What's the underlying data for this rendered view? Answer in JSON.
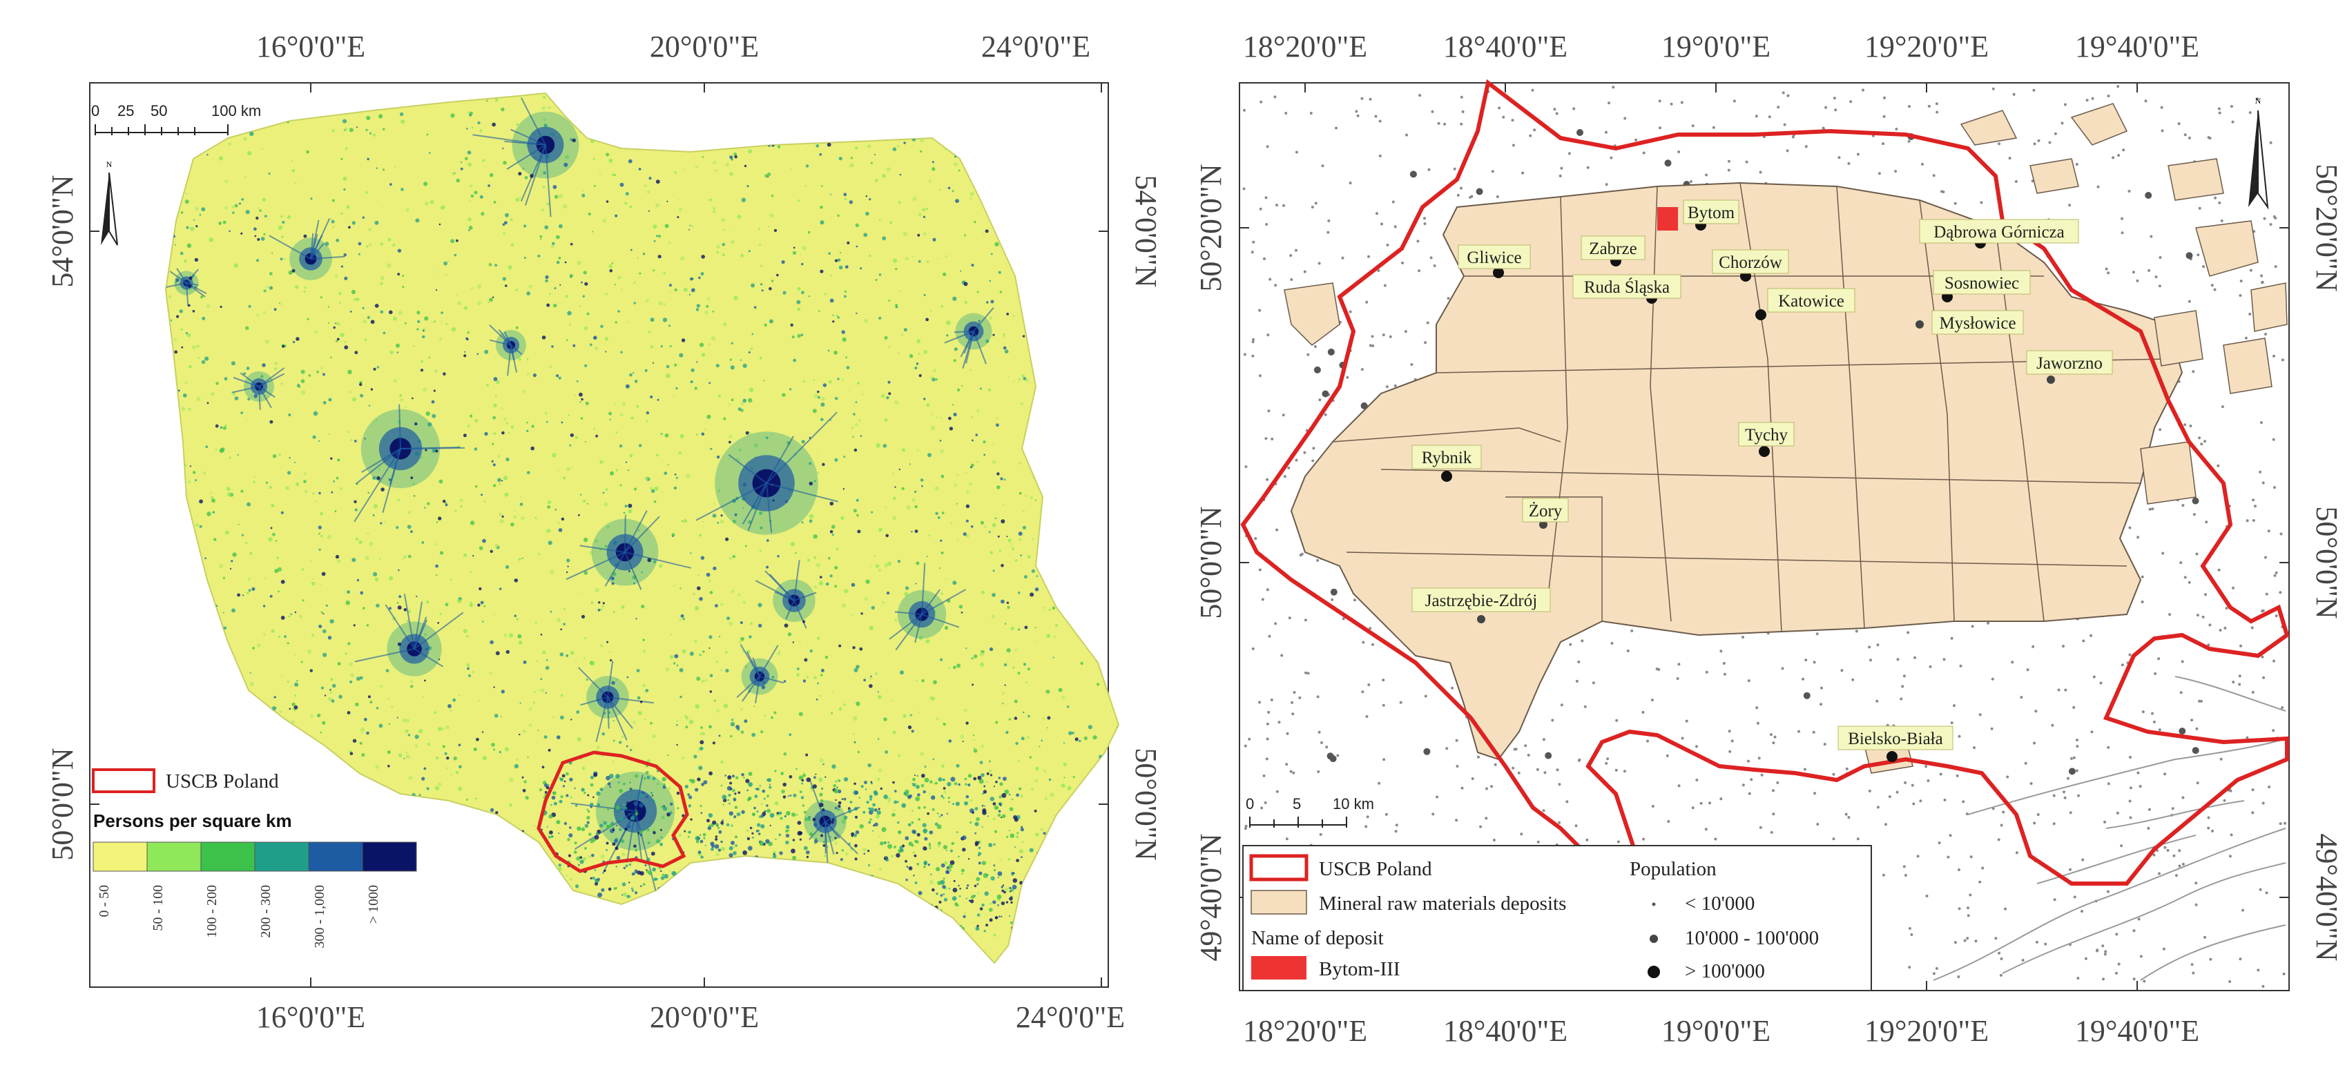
{
  "left_map": {
    "top_ticks": [
      "16°0'0\"E",
      "20°0'0\"E",
      "24°0'0\"E"
    ],
    "bottom_ticks": [
      "16°0'0\"E",
      "20°0'0\"E",
      "24°0'0\"E"
    ],
    "left_ticks": [
      "54°0'0\"N",
      "50°0'0\"N"
    ],
    "right_ticks": [
      "54°0'0\"N",
      "50°0'0\"N"
    ],
    "scale_labels": [
      "0",
      "25",
      "50",
      "100 km"
    ],
    "north_label": "N",
    "legend": {
      "boundary_label": "USCB Poland",
      "boundary_color": "#dd2222",
      "title": "Persons per square km",
      "classes": [
        {
          "label": "0 - 50",
          "color": "#f3f37a"
        },
        {
          "label": "50 - 100",
          "color": "#8ee85a"
        },
        {
          "label": "100 - 200",
          "color": "#3cc24a"
        },
        {
          "label": "200 - 300",
          "color": "#1f9f8a"
        },
        {
          "label": "300 - 1,000",
          "color": "#1d5ba3"
        },
        {
          "label": "> 1000",
          "color": "#0a1466"
        }
      ]
    }
  },
  "right_map": {
    "top_ticks": [
      "18°20'0\"E",
      "18°40'0\"E",
      "19°0'0\"E",
      "19°20'0\"E",
      "19°40'0\"E"
    ],
    "bottom_ticks": [
      "18°20'0\"E",
      "18°40'0\"E",
      "19°0'0\"E",
      "19°20'0\"E",
      "19°40'0\"E"
    ],
    "left_ticks": [
      "50°20'0\"N",
      "50°0'0\"N",
      "49°40'0\"N"
    ],
    "right_ticks": [
      "50°20'0\"N",
      "50°0'0\"N",
      "49°40'0\"N"
    ],
    "scale_labels": [
      "0",
      "5",
      "10 km"
    ],
    "north_label": "N",
    "cities": [
      {
        "name": "Bytom",
        "size": "large"
      },
      {
        "name": "Dąbrowa Górnicza",
        "size": "large"
      },
      {
        "name": "Zabrze",
        "size": "large"
      },
      {
        "name": "Gliwice",
        "size": "large"
      },
      {
        "name": "Chorzów",
        "size": "large"
      },
      {
        "name": "Ruda Śląska",
        "size": "large"
      },
      {
        "name": "Sosnowiec",
        "size": "large"
      },
      {
        "name": "Katowice",
        "size": "large"
      },
      {
        "name": "Mysłowice",
        "size": "medium"
      },
      {
        "name": "Jaworzno",
        "size": "medium"
      },
      {
        "name": "Tychy",
        "size": "large"
      },
      {
        "name": "Rybnik",
        "size": "large"
      },
      {
        "name": "Żory",
        "size": "medium"
      },
      {
        "name": "Jastrzębie-Zdrój",
        "size": "medium"
      },
      {
        "name": "Bielsko-Biała",
        "size": "large"
      }
    ],
    "legend": {
      "boundary_label": "USCB Poland",
      "deposits_label": "Mineral raw materials deposits",
      "deposit_name_heading": "Name of deposit",
      "deposit_name": "Bytom-III",
      "population_heading": "Population",
      "population_classes": [
        "< 10'000",
        "10'000 - 100'000",
        "> 100'000"
      ],
      "boundary_color": "#dd2222",
      "deposit_fill": "#f6dfbf",
      "highlight_color": "#ee3333"
    }
  }
}
